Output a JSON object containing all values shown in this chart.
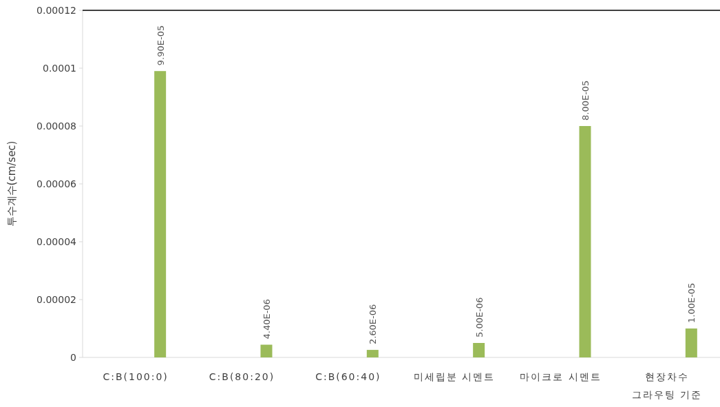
{
  "chart_data": {
    "type": "bar",
    "ylabel": "투수계수(cm/sec)",
    "categories": [
      "C:B(100:0)",
      "C:B(80:20)",
      "C:B(60:40)",
      "미세립분 시멘트",
      "마이크로 시멘트",
      "현장차수 그라우팅 기준"
    ],
    "values": [
      9.9e-05,
      4.4e-06,
      2.6e-06,
      5e-06,
      8e-05,
      1e-05
    ],
    "value_labels": [
      "9.90E-05",
      "4.40E-06",
      "2.60E-06",
      "5.00E-06",
      "8.00E-05",
      "1.00E-05"
    ],
    "color": "#9bbb59",
    "ylim": [
      0,
      0.00012
    ],
    "yticks": [
      0,
      {
        "value": 2e-05,
        "label": "0.00002"
      },
      {
        "value": 4e-05,
        "label": "0.00004"
      },
      {
        "value": 6e-05,
        "label": "0.00006"
      },
      {
        "value": 8e-05,
        "label": "0.00008"
      },
      0.0001,
      0.00012
    ],
    "grid": false
  }
}
